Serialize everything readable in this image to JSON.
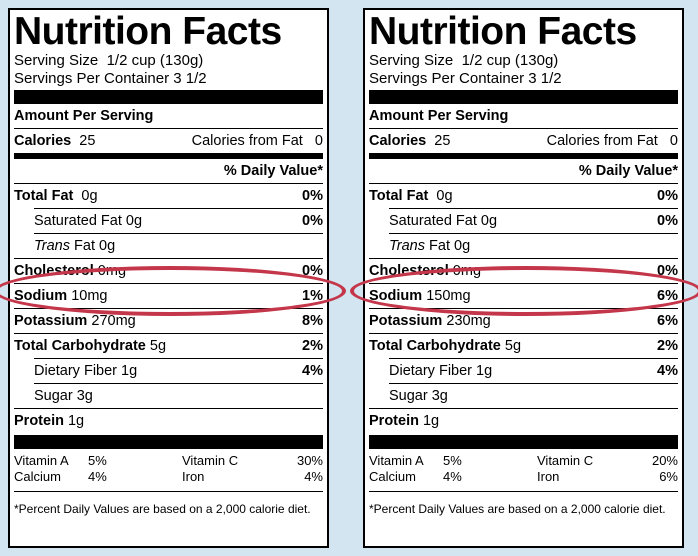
{
  "labels": [
    {
      "title": "Nutrition Facts",
      "serving_size_label": "Serving Size",
      "serving_size_value": "1/2 cup (130g)",
      "servings_label": "Servings Per Container",
      "servings_value": "3 1/2",
      "amount_per_serving": "Amount Per Serving",
      "calories_label": "Calories",
      "calories_value": "25",
      "calories_from_fat_label": "Calories from Fat",
      "calories_from_fat_value": "0",
      "daily_value_header": "% Daily Value*",
      "total_fat": {
        "label": "Total Fat",
        "amount": "0g",
        "dv": "0%"
      },
      "saturated_fat": {
        "label": "Saturated Fat",
        "amount": "0g",
        "dv": "0%"
      },
      "trans_fat": {
        "label": "Trans",
        "label_rest": "Fat",
        "amount": "0g"
      },
      "cholesterol": {
        "label": "Cholesterol",
        "amount": "0mg",
        "dv": "0%"
      },
      "sodium": {
        "label": "Sodium",
        "amount": "10mg",
        "dv": "1%"
      },
      "potassium": {
        "label": "Potassium",
        "amount": "270mg",
        "dv": "8%"
      },
      "total_carb": {
        "label": "Total Carbohydrate",
        "amount": "5g",
        "dv": "2%"
      },
      "fiber": {
        "label": "Dietary Fiber",
        "amount": "1g",
        "dv": "4%"
      },
      "sugar": {
        "label": "Sugar",
        "amount": "3g"
      },
      "protein": {
        "label": "Protein",
        "amount": "1g"
      },
      "vitamins": {
        "vitamin_a_label": "Vitamin A",
        "vitamin_a_dv": "5%",
        "vitamin_c_label": "Vitamin C",
        "vitamin_c_dv": "30%",
        "calcium_label": "Calcium",
        "calcium_dv": "4%",
        "iron_label": "Iron",
        "iron_dv": "4%"
      },
      "footnote": "*Percent Daily Values are based on a 2,000 calorie diet."
    },
    {
      "title": "Nutrition Facts",
      "serving_size_label": "Serving Size",
      "serving_size_value": "1/2 cup (130g)",
      "servings_label": "Servings Per Container",
      "servings_value": "3 1/2",
      "amount_per_serving": "Amount Per Serving",
      "calories_label": "Calories",
      "calories_value": "25",
      "calories_from_fat_label": "Calories from Fat",
      "calories_from_fat_value": "0",
      "daily_value_header": "% Daily Value*",
      "total_fat": {
        "label": "Total Fat",
        "amount": "0g",
        "dv": "0%"
      },
      "saturated_fat": {
        "label": "Saturated Fat",
        "amount": "0g",
        "dv": "0%"
      },
      "trans_fat": {
        "label": "Trans",
        "label_rest": "Fat",
        "amount": "0g"
      },
      "cholesterol": {
        "label": "Cholesterol",
        "amount": "0mg",
        "dv": "0%"
      },
      "sodium": {
        "label": "Sodium",
        "amount": "150mg",
        "dv": "6%"
      },
      "potassium": {
        "label": "Potassium",
        "amount": "230mg",
        "dv": "6%"
      },
      "total_carb": {
        "label": "Total Carbohydrate",
        "amount": "5g",
        "dv": "2%"
      },
      "fiber": {
        "label": "Dietary Fiber",
        "amount": "1g",
        "dv": "4%"
      },
      "sugar": {
        "label": "Sugar",
        "amount": "3g"
      },
      "protein": {
        "label": "Protein",
        "amount": "1g"
      },
      "vitamins": {
        "vitamin_a_label": "Vitamin A",
        "vitamin_a_dv": "5%",
        "vitamin_c_label": "Vitamin C",
        "vitamin_c_dv": "20%",
        "calcium_label": "Calcium",
        "calcium_dv": "4%",
        "iron_label": "Iron",
        "iron_dv": "6%"
      },
      "footnote": "*Percent Daily Values are based on a 2,000 calorie diet."
    }
  ],
  "colors": {
    "background": "#d2e5f1",
    "highlight_oval": "#c4364a"
  }
}
